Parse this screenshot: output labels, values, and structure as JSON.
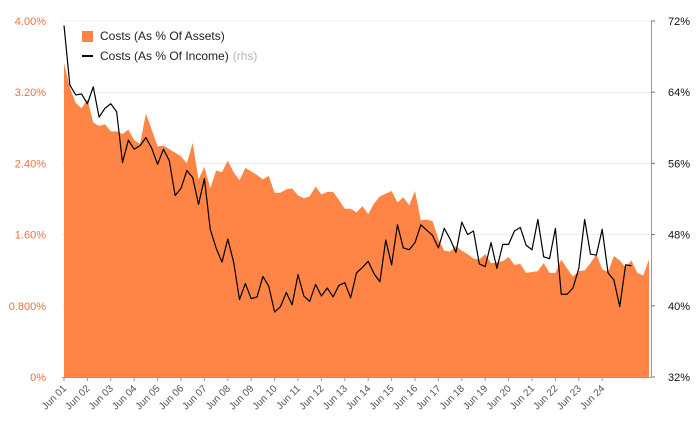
{
  "colors": {
    "area": "#ff8547",
    "line": "#000000",
    "axis_left": "#f0733a",
    "axis_right": "#111111",
    "grid": "#ececec"
  },
  "chart_data": {
    "type": "area+line",
    "title": "",
    "left_axis": {
      "label": "",
      "ylim": [
        0,
        4.0
      ],
      "tick_values": [
        0,
        0.8,
        1.6,
        2.4,
        3.2,
        4.0
      ],
      "tick_labels": [
        "0%",
        "0.800%",
        "1.60%",
        "2.40%",
        "3.20%",
        "4.00%"
      ]
    },
    "right_axis": {
      "label": "",
      "ylim": [
        32,
        72
      ],
      "tick_values": [
        32,
        40,
        48,
        56,
        64,
        72
      ],
      "tick_labels": [
        "32%",
        "40%",
        "48%",
        "56%",
        "64%",
        "72%"
      ]
    },
    "x_tick_labels": [
      "Jun 01",
      "Jun 02",
      "Jun 03",
      "Jun 04",
      "Jun 05",
      "Jun 06",
      "Jun 07",
      "Jun 08",
      "Jun 09",
      "Jun 10",
      "Jun 11",
      "Jun 12",
      "Jun 13",
      "Jun 14",
      "Jun 15",
      "Jun 16",
      "Jun 17",
      "Jun 18",
      "Jun 19",
      "Jun 20",
      "Jun 21",
      "Jun 22",
      "Jun 23",
      "Jun 24"
    ],
    "x_start_year": 2001.5,
    "step_years": 0.25,
    "legend": [
      {
        "name": "Costs (As % Of Assets)",
        "type": "area"
      },
      {
        "name": "Costs (As % Of Income)",
        "suffix": "(rhs)",
        "type": "line"
      }
    ],
    "series": [
      {
        "name": "Costs (As % Of Assets)",
        "axis": "left",
        "values": [
          3.53,
          3.25,
          3.08,
          3.02,
          3.12,
          2.86,
          2.82,
          2.84,
          2.76,
          2.76,
          2.73,
          2.78,
          2.66,
          2.62,
          2.96,
          2.78,
          2.59,
          2.6,
          2.56,
          2.52,
          2.48,
          2.4,
          2.63,
          2.22,
          2.36,
          2.12,
          2.32,
          2.3,
          2.43,
          2.3,
          2.21,
          2.35,
          2.31,
          2.27,
          2.22,
          2.26,
          2.07,
          2.07,
          2.11,
          2.12,
          2.04,
          2.01,
          2.03,
          2.14,
          2.05,
          2.08,
          2.08,
          1.99,
          1.89,
          1.89,
          1.85,
          1.92,
          1.83,
          1.95,
          2.03,
          2.06,
          2.09,
          1.96,
          2.02,
          1.93,
          2.09,
          1.76,
          1.77,
          1.75,
          1.55,
          1.42,
          1.41,
          1.47,
          1.42,
          1.38,
          1.33,
          1.32,
          1.38,
          1.28,
          1.29,
          1.3,
          1.35,
          1.26,
          1.27,
          1.17,
          1.18,
          1.19,
          1.28,
          1.17,
          1.17,
          1.32,
          1.22,
          1.13,
          1.19,
          1.2,
          1.28,
          1.38,
          1.21,
          1.18,
          1.36,
          1.31,
          1.23,
          1.31,
          1.17,
          1.14,
          1.32
        ]
      },
      {
        "name": "Costs (As % Of Income)",
        "axis": "right",
        "values": [
          71.5,
          64.8,
          63.7,
          63.8,
          62.7,
          64.6,
          61.2,
          62.2,
          62.7,
          61.8,
          56.1,
          58.6,
          57.6,
          58.0,
          58.9,
          57.7,
          55.9,
          57.6,
          56.3,
          52.4,
          53.2,
          55.2,
          54.4,
          51.4,
          54.3,
          48.6,
          46.5,
          44.9,
          47.5,
          44.9,
          40.7,
          42.5,
          40.8,
          41.0,
          43.3,
          42.2,
          39.3,
          39.9,
          41.5,
          40.1,
          43.5,
          41.1,
          40.5,
          42.4,
          41.1,
          42.0,
          41.0,
          42.3,
          42.6,
          40.9,
          43.7,
          44.3,
          45.0,
          43.6,
          42.7,
          47.4,
          44.6,
          49.1,
          46.5,
          46.3,
          47.1,
          49.1,
          48.5,
          47.9,
          46.5,
          48.7,
          47.5,
          46.0,
          49.4,
          48.0,
          48.4,
          44.7,
          44.4,
          47.1,
          44.2,
          46.9,
          46.9,
          48.4,
          48.8,
          46.8,
          46.3,
          49.7,
          45.5,
          45.3,
          48.7,
          41.3,
          41.3,
          42.0,
          44.2,
          49.7,
          45.8,
          45.7,
          48.6,
          43.7,
          42.9,
          39.9,
          44.6,
          44.5
        ]
      }
    ]
  }
}
